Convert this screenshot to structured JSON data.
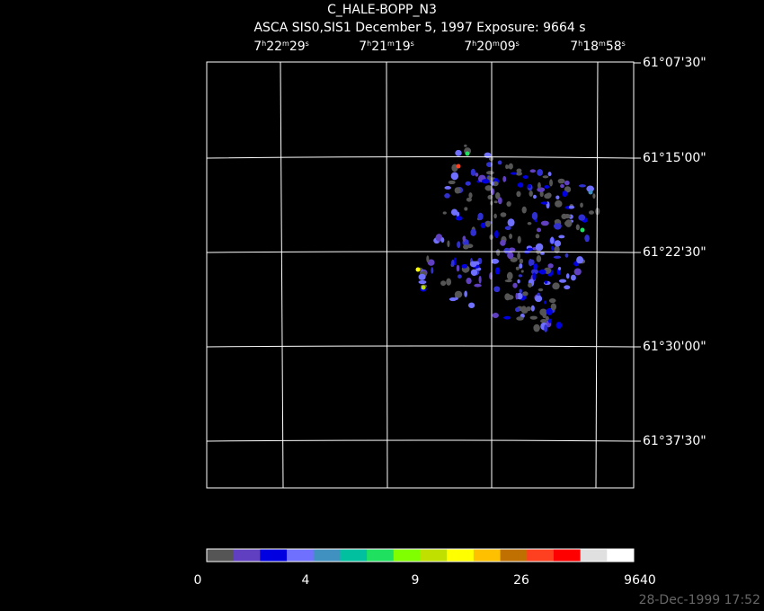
{
  "header": {
    "title": "C_HALE-BOPP_N3",
    "subtitle": "ASCA SIS0,SIS1 December 5, 1997 Exposure: 9664 s"
  },
  "ra_labels": [
    {
      "h": "7",
      "m": "22",
      "s": "29"
    },
    {
      "h": "7",
      "m": "21",
      "s": "19"
    },
    {
      "h": "7",
      "m": "20",
      "s": "09"
    },
    {
      "h": "7",
      "m": "18",
      "s": "58"
    }
  ],
  "ra_units": {
    "h": "h",
    "m": "m",
    "s": "s"
  },
  "dec_labels": [
    "61°07'30\"",
    "61°15'00\"",
    "61°22'30\"",
    "61°30'00\"",
    "61°37'30\""
  ],
  "colorbar": {
    "colors": [
      "#555555",
      "#6040c0",
      "#0000e0",
      "#7070ff",
      "#4090c0",
      "#00c0a0",
      "#20e060",
      "#80ff00",
      "#c0e000",
      "#ffff00",
      "#ffc000",
      "#c07000",
      "#ff4020",
      "#ff0000",
      "#e0e0e0",
      "#ffffff"
    ],
    "labels": [
      "0",
      "4",
      "9",
      "26",
      "9640"
    ]
  },
  "footer": {
    "timestamp": "28-Dec-1999 17:52"
  }
}
